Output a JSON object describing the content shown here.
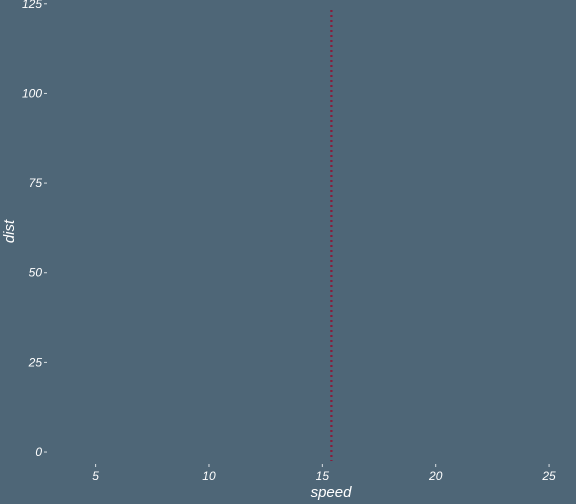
{
  "chart_data": {
    "type": "line",
    "title": "",
    "xlabel": "speed",
    "ylabel": "dist",
    "xlim": [
      2.9,
      26.1
    ],
    "ylim": [
      -2.5,
      125.5
    ],
    "x_ticks": [
      5,
      10,
      15,
      20,
      25
    ],
    "y_ticks": [
      0,
      25,
      50,
      75,
      100,
      125
    ],
    "grid": false,
    "legend": "none",
    "vline": {
      "x": 15.4,
      "style": "dotted",
      "color": "#8b1a3a"
    },
    "colors": {
      "background": "#4e6677",
      "text": "#ffffff"
    }
  }
}
